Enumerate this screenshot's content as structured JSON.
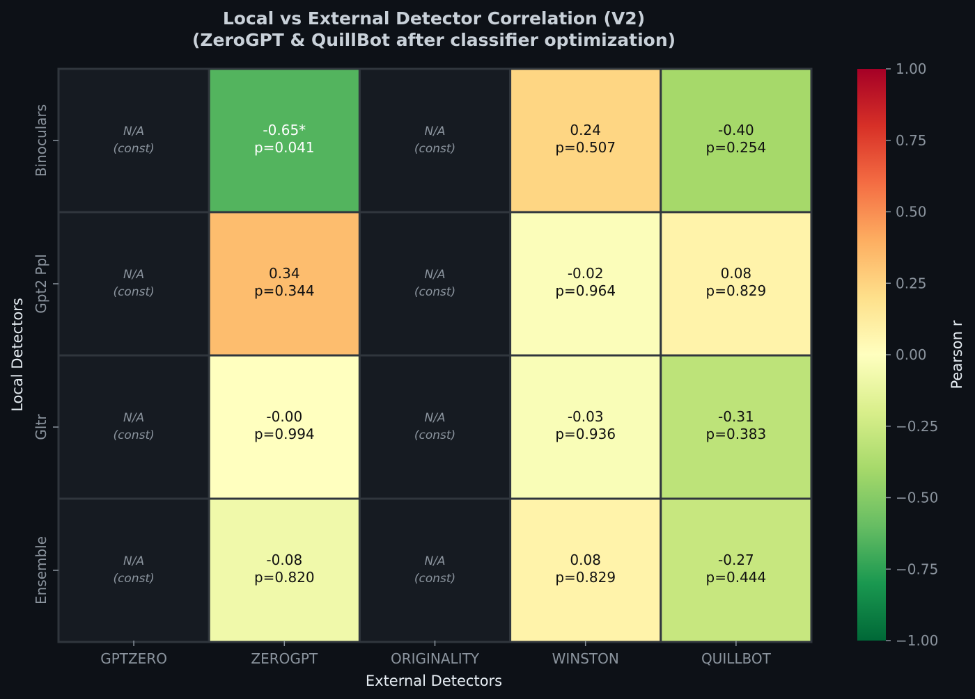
{
  "chart_data": {
    "type": "heatmap",
    "title": "Local vs External Detector Correlation (V2)",
    "subtitle": "(ZeroGPT & QuillBot after classifier optimization)",
    "xlabel": "External Detectors",
    "ylabel": "Local Detectors",
    "x_categories": [
      "GPTZERO",
      "ZEROGPT",
      "ORIGINALITY",
      "WINSTON",
      "QUILLBOT"
    ],
    "y_categories": [
      "Binoculars",
      "Gpt2 Ppl",
      "Gltr",
      "Ensemble"
    ],
    "values": [
      [
        null,
        -0.65,
        null,
        0.24,
        -0.4
      ],
      [
        null,
        0.34,
        null,
        -0.02,
        0.08
      ],
      [
        null,
        -0.0,
        null,
        -0.03,
        -0.31
      ],
      [
        null,
        -0.08,
        null,
        0.08,
        -0.27
      ]
    ],
    "cell_labels": [
      [
        [
          "N/A",
          "(const)"
        ],
        [
          "-0.65*",
          "p=0.041"
        ],
        [
          "N/A",
          "(const)"
        ],
        [
          "0.24",
          "p=0.507"
        ],
        [
          "-0.40",
          "p=0.254"
        ]
      ],
      [
        [
          "N/A",
          "(const)"
        ],
        [
          "0.34",
          "p=0.344"
        ],
        [
          "N/A",
          "(const)"
        ],
        [
          "-0.02",
          "p=0.964"
        ],
        [
          "0.08",
          "p=0.829"
        ]
      ],
      [
        [
          "N/A",
          "(const)"
        ],
        [
          "-0.00",
          "p=0.994"
        ],
        [
          "N/A",
          "(const)"
        ],
        [
          "-0.03",
          "p=0.936"
        ],
        [
          "-0.31",
          "p=0.383"
        ]
      ],
      [
        [
          "N/A",
          "(const)"
        ],
        [
          "-0.08",
          "p=0.820"
        ],
        [
          "N/A",
          "(const)"
        ],
        [
          "0.08",
          "p=0.829"
        ],
        [
          "-0.27",
          "p=0.444"
        ]
      ]
    ],
    "colorbar": {
      "label": "Pearson r",
      "range": [
        -1.0,
        1.0
      ],
      "ticks": [
        1.0,
        0.75,
        0.5,
        0.25,
        0.0,
        -0.25,
        -0.5,
        -0.75,
        -1.0
      ],
      "tick_labels": [
        "1.00",
        "0.75",
        "0.50",
        "0.25",
        "0.00",
        "−0.25",
        "−0.50",
        "−0.75",
        "−1.00"
      ],
      "colormap": "RdYlGn_r"
    },
    "colors": {
      "background": "#0d1117",
      "na_cell": "#161b22",
      "grid_line": "#30363d"
    }
  }
}
